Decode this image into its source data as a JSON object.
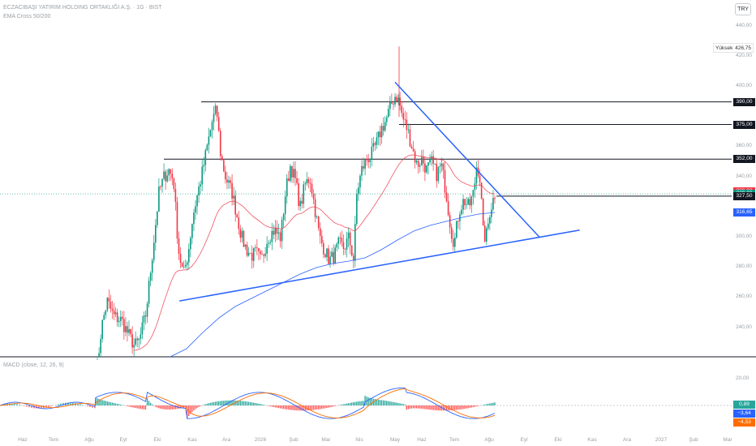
{
  "header": {
    "title": "ECZACIBAŞI YATIRIM HOLDING ORTAKLIĞI A.Ş. · 1G · BIST",
    "indicator": "EMA Cross 50/200",
    "currency_button": "TRY"
  },
  "macd_panel": {
    "label": "MACD (close, 12, 26, 9)",
    "tick_label": "20,00",
    "values": [
      {
        "text": "0,89",
        "color": "#26a69a"
      },
      {
        "text": "−3,64",
        "color": "#2962ff"
      },
      {
        "text": "−4,53",
        "color": "#ff6d00"
      }
    ]
  },
  "high_marker": {
    "label": "Yüksek",
    "value": "426,75"
  },
  "price_axis": {
    "ticks": [
      "440,00",
      "420,00",
      "400,00",
      "360,00",
      "340,00",
      "300,00",
      "280,00",
      "260,00",
      "240,00"
    ]
  },
  "price_tags": [
    {
      "text": "390,00",
      "value": 390.0,
      "bg": "#131722"
    },
    {
      "text": "375,00",
      "value": 375.0,
      "bg": "#131722"
    },
    {
      "text": "352,00",
      "value": 352.0,
      "bg": "#131722"
    },
    {
      "text": "330,82",
      "value": 330.82,
      "bg": "#f23645"
    },
    {
      "text": "329,00",
      "value": 329.0,
      "bg": "#089981"
    },
    {
      "text": "327,50",
      "value": 327.5,
      "bg": "#131722"
    },
    {
      "text": "316,65",
      "value": 316.65,
      "bg": "#2962ff"
    }
  ],
  "time_axis": [
    "Haz",
    "Tem",
    "Ağu",
    "Eyl",
    "Eki",
    "Kas",
    "Ara",
    "2026",
    "Şub",
    "Mar",
    "Nis",
    "May",
    "Haz",
    "Tem",
    "Ağu",
    "Eyl",
    "Eki",
    "Kas",
    "Ara",
    "2027",
    "Şub",
    "Mar"
  ],
  "chart_data": {
    "type": "candlestick",
    "symbol": "ECZACIBAŞI YATIRIM HOLDING ORTAKLIĞI A.Ş.",
    "interval": "1G",
    "currency": "TRY",
    "ylim": [
      230,
      445
    ],
    "horizontal_levels": [
      390.0,
      375.0,
      352.0,
      327.5
    ],
    "last_price": 329.0,
    "ema50_last": 330.82,
    "ema200_last": 316.65,
    "high": 426.75,
    "anchors": [
      {
        "date": "2025-06",
        "close": 180
      },
      {
        "date": "2025-07",
        "close": 235
      },
      {
        "date": "2025-08",
        "close": 245
      },
      {
        "date": "2025-09",
        "close": 230
      },
      {
        "date": "2025-10",
        "close": 340
      },
      {
        "date": "2025-11",
        "close": 270
      },
      {
        "date": "2025-12",
        "close": 390
      },
      {
        "date": "2026-01",
        "close": 285
      },
      {
        "date": "2026-02",
        "close": 352
      },
      {
        "date": "2026-03",
        "close": 285
      },
      {
        "date": "2026-04",
        "close": 355
      },
      {
        "date": "2026-05",
        "close": 395
      },
      {
        "date": "2026-06",
        "close": 345
      },
      {
        "date": "2026-07",
        "close": 300
      },
      {
        "date": "2026-08",
        "close": 329
      }
    ],
    "trendlines": [
      {
        "name": "support",
        "from": {
          "date": "2025-10-20",
          "price": 258
        },
        "to": {
          "date": "2026-10-20",
          "price": 305
        }
      },
      {
        "name": "resistance",
        "from": {
          "date": "2026-05-01",
          "price": 403
        },
        "to": {
          "date": "2026-09-15",
          "price": 300
        }
      }
    ],
    "series": [
      {
        "name": "EMA 50",
        "color": "#f23645"
      },
      {
        "name": "EMA 200",
        "color": "#2962ff"
      },
      {
        "name": "MACD",
        "color": "#2962ff"
      },
      {
        "name": "Signal",
        "color": "#ff6d00"
      },
      {
        "name": "Histogram",
        "color": "#26a69a"
      }
    ]
  }
}
